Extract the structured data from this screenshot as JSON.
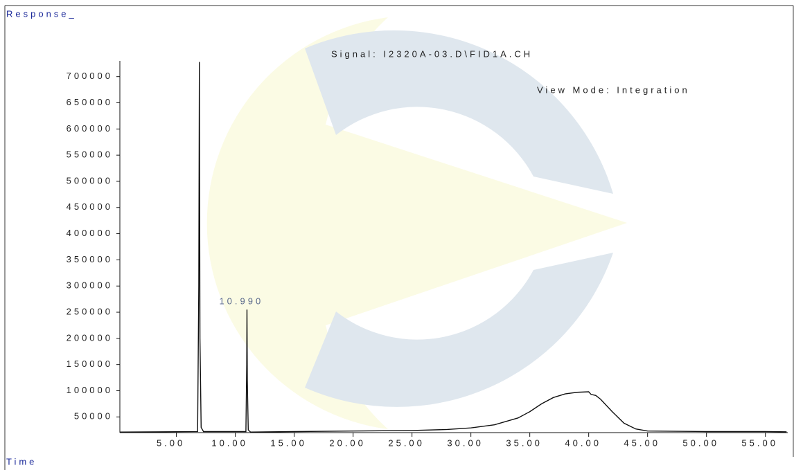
{
  "chart_data": {
    "type": "line",
    "y_label": "Response_",
    "x_label": "Time",
    "title": "Signal: I2320A-03.D\\FID1A.CH",
    "subtitle": "View Mode: Integration",
    "peak_label": {
      "value": 10.99,
      "label": "10.990"
    },
    "xlim": [
      0.2,
      56.9
    ],
    "ylim": [
      20000,
      730000
    ],
    "xticks": [
      {
        "value": 5,
        "label": "5.00"
      },
      {
        "value": 10,
        "label": "10.00"
      },
      {
        "value": 15,
        "label": "15.00"
      },
      {
        "value": 20,
        "label": "20.00"
      },
      {
        "value": 25,
        "label": "25.00"
      },
      {
        "value": 30,
        "label": "30.00"
      },
      {
        "value": 35,
        "label": "35.00"
      },
      {
        "value": 40,
        "label": "40.00"
      },
      {
        "value": 45,
        "label": "45.00"
      },
      {
        "value": 50,
        "label": "50.00"
      },
      {
        "value": 55,
        "label": "55.00"
      }
    ],
    "yticks": [
      50000,
      100000,
      150000,
      200000,
      250000,
      300000,
      350000,
      400000,
      450000,
      500000,
      550000,
      600000,
      650000,
      700000
    ],
    "color": "#111111",
    "x": [
      0.2,
      6.8,
      6.9,
      6.95,
      7.0,
      7.1,
      7.3,
      10.9,
      10.97,
      10.99,
      11.02,
      11.1,
      11.3,
      15,
      20,
      25,
      28,
      30,
      32,
      34,
      35,
      36,
      37,
      38,
      39,
      40,
      40.2,
      40.6,
      41,
      42,
      43,
      44,
      45,
      50,
      55,
      56.8
    ],
    "values": [
      21000,
      22000,
      300000,
      728000,
      200000,
      30000,
      22000,
      22000,
      150000,
      255000,
      120000,
      25000,
      21000,
      22000,
      23000,
      24000,
      26000,
      29000,
      35000,
      48000,
      60000,
      75000,
      87000,
      94000,
      97000,
      98000,
      93000,
      91000,
      84000,
      60000,
      38000,
      27000,
      23000,
      22000,
      22000,
      21500
    ]
  }
}
